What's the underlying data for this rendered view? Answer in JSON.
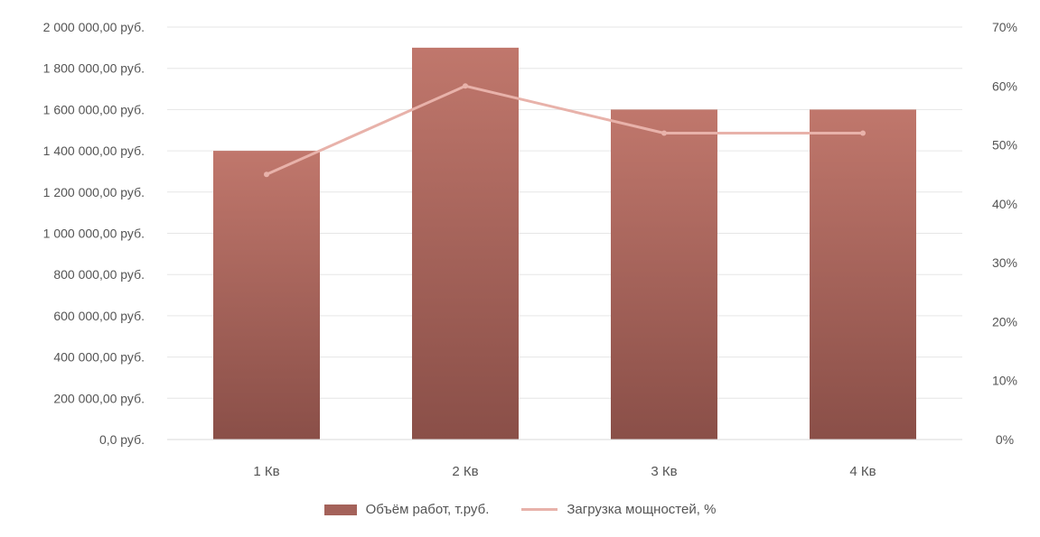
{
  "chart_data": {
    "type": "bar",
    "categories": [
      "1 Кв",
      "2 Кв",
      "3 Кв",
      "4 Кв"
    ],
    "series": [
      {
        "name": "Объём работ, т.руб.",
        "type": "bar",
        "axis": "left",
        "values": [
          1400000,
          1900000,
          1600000,
          1600000
        ]
      },
      {
        "name": "Загрузка мощностей, %",
        "type": "line",
        "axis": "right",
        "values": [
          45,
          60,
          52,
          52
        ]
      }
    ],
    "y_left": {
      "min": 0,
      "max": 2000000,
      "step": 200000,
      "tick_labels": [
        "0,0 руб.",
        "200 000,00 руб.",
        "400 000,00 руб.",
        "600 000,00 руб.",
        "800 000,00 руб.",
        "1 000 000,00 руб.",
        "1 200 000,00 руб.",
        "1 400 000,00 руб.",
        "1 600 000,00 руб.",
        "1 800 000,00 руб.",
        "2 000 000,00 руб."
      ]
    },
    "y_right": {
      "min": 0,
      "max": 70,
      "step": 10,
      "tick_labels": [
        "0%",
        "10%",
        "20%",
        "30%",
        "40%",
        "50%",
        "60%",
        "70%"
      ]
    },
    "grid": true,
    "legend": "bottom",
    "colors": {
      "bar_top": "#c0776c",
      "bar_bottom": "#8a4f48",
      "line": "#e8b2aa",
      "grid": "#e6e6e6"
    }
  }
}
